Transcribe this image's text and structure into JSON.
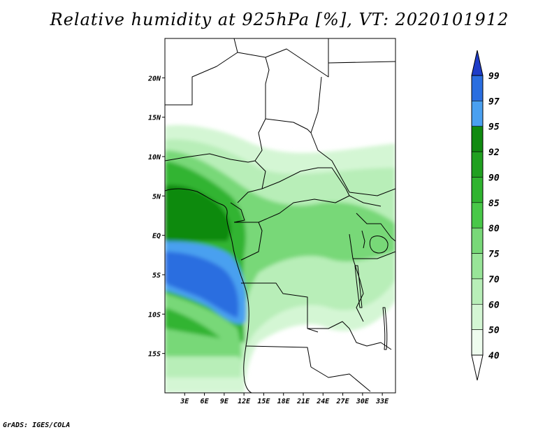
{
  "title": "Relative humidity at 925hPa [%], VT: 2020101912",
  "credit": "GrADS: IGES/COLA",
  "map": {
    "lon_range": [
      0,
      35
    ],
    "lat_range": [
      -20,
      25
    ],
    "x_ticks": [
      "3E",
      "6E",
      "9E",
      "12E",
      "15E",
      "18E",
      "21E",
      "24E",
      "27E",
      "30E",
      "33E"
    ],
    "y_ticks": [
      "20N",
      "15N",
      "10N",
      "5N",
      "EQ",
      "5S",
      "10S",
      "15S"
    ]
  },
  "colorbar": {
    "labels": [
      "99",
      "97",
      "95",
      "92",
      "90",
      "85",
      "80",
      "75",
      "70",
      "60",
      "50",
      "40"
    ],
    "colors": [
      "#1e3cc8",
      "#2a6ee0",
      "#4aa0f0",
      "#108a10",
      "#20a020",
      "#30b430",
      "#48c848",
      "#78d878",
      "#98e498",
      "#b8eeb8",
      "#d4f6d4",
      "#eefcee"
    ]
  }
}
